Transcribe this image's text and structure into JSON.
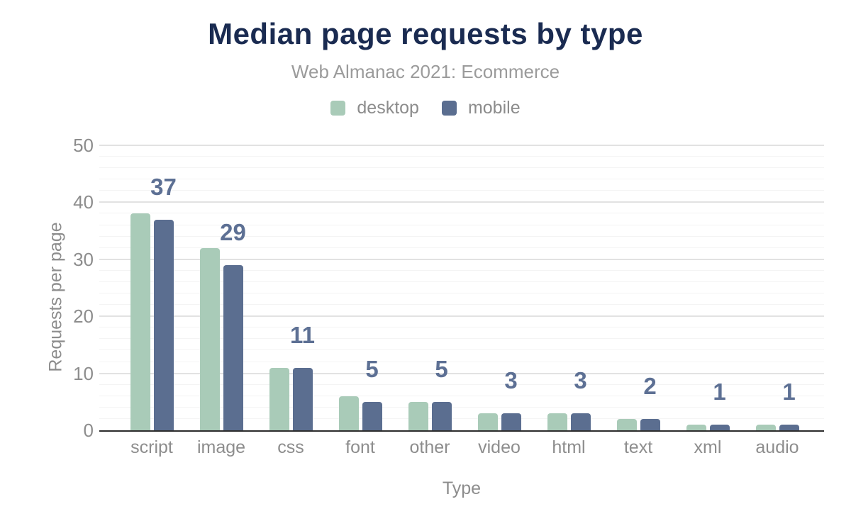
{
  "header": {
    "title": "Median page requests by type",
    "subtitle": "Web Almanac 2021: Ecommerce"
  },
  "chart_data": {
    "type": "bar",
    "title": "Median page requests by type",
    "subtitle": "Web Almanac 2021: Ecommerce",
    "categories": [
      "script",
      "image",
      "css",
      "font",
      "other",
      "video",
      "html",
      "text",
      "xml",
      "audio"
    ],
    "series": [
      {
        "name": "desktop",
        "color": "#a9cbb8",
        "values": [
          38,
          32,
          11,
          6,
          5,
          3,
          3,
          2,
          1,
          1
        ]
      },
      {
        "name": "mobile",
        "color": "#5b6e90",
        "values": [
          37,
          29,
          11,
          5,
          5,
          3,
          3,
          2,
          1,
          1
        ]
      }
    ],
    "data_labels": {
      "source_series": "mobile",
      "values": [
        "37",
        "29",
        "11",
        "5",
        "5",
        "3",
        "3",
        "2",
        "1",
        "1"
      ],
      "color": "#5d7094"
    },
    "xlabel": "Type",
    "ylabel": "Requests per page",
    "ylim": [
      0,
      50
    ],
    "yticks": [
      0,
      10,
      20,
      30,
      40,
      50
    ],
    "grid": {
      "minor_step": 2,
      "major_step": 10,
      "minor_color": "#f4f4f4",
      "major_color": "#e2e2e2"
    },
    "legend_position": "top",
    "colors": {
      "title": "#1a2b51",
      "subtitle": "#9b9b9b",
      "tick_label": "#8d8d8d",
      "axis_title": "#8d8d8d",
      "axis_line": "#2d2d2d",
      "background": "#ffffff"
    }
  }
}
